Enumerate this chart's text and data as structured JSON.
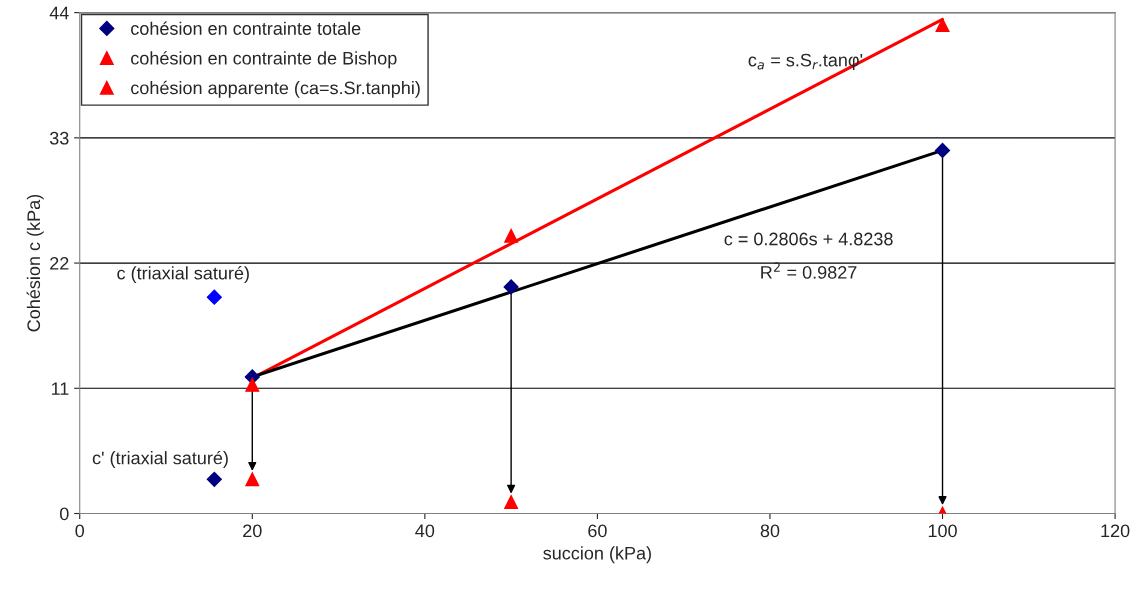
{
  "chart_data": {
    "type": "scatter",
    "xlabel": "succion (kPa)",
    "ylabel": "Cohésion c (kPa)",
    "xlim": [
      0,
      120
    ],
    "xticks": [
      0,
      20,
      40,
      60,
      80,
      100,
      120
    ],
    "ylim": [
      0,
      44
    ],
    "yticks": [
      0,
      11,
      22,
      33,
      44
    ],
    "grid": "y",
    "legend": "top left",
    "series": [
      {
        "type": "line",
        "color": "#ff0000",
        "x": [
          20,
          100
        ],
        "values": [
          11.9,
          43.4
        ],
        "marker": "none",
        "line_style": "solid"
      },
      {
        "type": "line",
        "color": "#000000",
        "x": [
          20,
          100
        ],
        "values": [
          12.0,
          31.9
        ],
        "marker": "none",
        "line_style": "solid"
      },
      {
        "name": "cohésion en contrainte totale",
        "color": "#000080",
        "x": [
          20,
          50,
          100
        ],
        "values": [
          12.0,
          19.9,
          31.9
        ],
        "marker": "diamond"
      },
      {
        "name": "cohésion en contrainte de Bishop",
        "color": "#ff0000",
        "x": [
          20,
          50,
          100
        ],
        "values": [
          3.0,
          1.0,
          0
        ],
        "marker": "triangle"
      },
      {
        "name": "cohésion apparente (ca=s.Sr.tanphi)",
        "color": "#ff0000",
        "x": [
          20,
          50,
          100
        ],
        "values": [
          11.3,
          24.4,
          42.9
        ],
        "marker": "triangle"
      },
      {
        "color": "#0000ff",
        "x": [
          15.6
        ],
        "values": [
          19.0
        ],
        "marker": "diamond"
      },
      {
        "color": "#000080",
        "x": [
          15.6
        ],
        "values": [
          3.0
        ],
        "marker": "diamond"
      }
    ],
    "annotations": [
      "c$_{a}$ = s.S$_{r}$.tanφ'",
      "c = 0.2806s + 4.8238",
      "R$^{2}$ = 0.9827",
      "c (triaxial saturé)",
      "c' (triaxial saturé)"
    ]
  }
}
